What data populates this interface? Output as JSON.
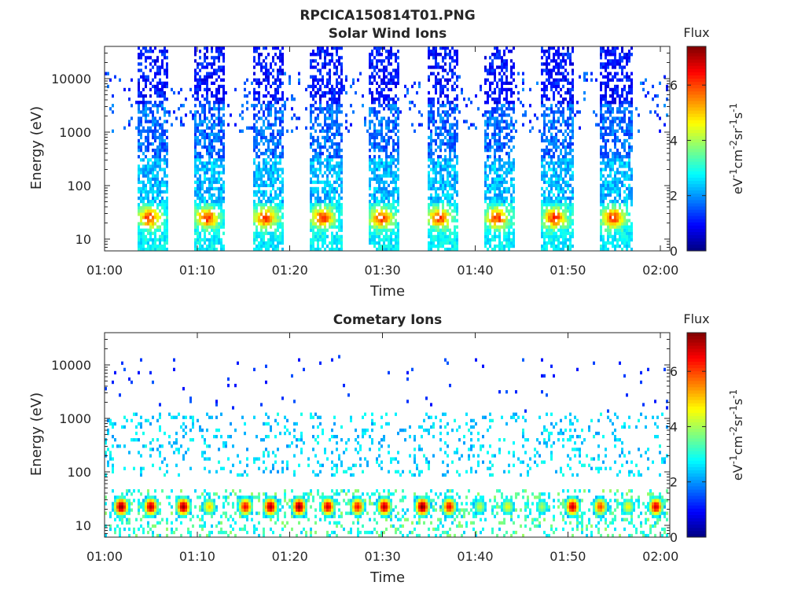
{
  "figure_title": "RPCICA150814T01.PNG",
  "chart_data": [
    {
      "type": "heatmap",
      "title": "Solar Wind Ions",
      "xlabel": "Time",
      "ylabel": "Energy (eV)",
      "x_ticks": [
        "01:00",
        "01:10",
        "01:20",
        "01:30",
        "01:40",
        "01:50",
        "02:00"
      ],
      "x_range_minutes": [
        0,
        61
      ],
      "y_scale": "log",
      "y_ticks": [
        "10",
        "100",
        "1000",
        "10000"
      ],
      "y_range": [
        6,
        40000
      ],
      "colorbar": {
        "title": "Flux",
        "label": "eV-1cm-2sr-1s-1",
        "ticks": [
          "0",
          "2",
          "4",
          "6"
        ],
        "range": [
          0,
          7.4
        ],
        "colormap": "jet"
      },
      "grid": false,
      "pattern": "periodic scans; sparse 2-3 high energy, 4-5 peaks near 25 eV",
      "scan_starts_min": [
        3.5,
        9.7,
        16.0,
        22.2,
        28.5,
        34.8,
        41.0,
        47.2,
        53.5
      ],
      "scan_width_min": 3.4,
      "peak_energy_eV": 25
    },
    {
      "type": "heatmap",
      "title": "Cometary Ions",
      "xlabel": "Time",
      "ylabel": "Energy (eV)",
      "x_ticks": [
        "01:00",
        "01:10",
        "01:20",
        "01:30",
        "01:40",
        "01:50",
        "02:00"
      ],
      "x_range_minutes": [
        0,
        61
      ],
      "y_scale": "log",
      "y_ticks": [
        "10",
        "100",
        "1000",
        "10000"
      ],
      "y_range": [
        6,
        40000
      ],
      "colorbar": {
        "title": "Flux",
        "label": "eV-1cm-2sr-1s-1",
        "ticks": [
          "0",
          "2",
          "4",
          "6"
        ],
        "range": [
          0,
          7.4
        ],
        "colormap": "jet"
      },
      "grid": false,
      "pattern": "intense low-energy bursts 10-40 eV; sparse cyan 100-1000 eV",
      "burst_centers_min": [
        1.8,
        5.0,
        8.5,
        11.3,
        15.2,
        17.9,
        21.0,
        24.1,
        27.3,
        30.2,
        34.3,
        37.2,
        40.5,
        43.5,
        47.2,
        50.5,
        53.5,
        56.5,
        59.5
      ],
      "burst_peak_flux": [
        7.3,
        7.0,
        7.2,
        5.0,
        6.5,
        7.1,
        7.3,
        6.8,
        6.4,
        7.0,
        7.4,
        6.5,
        4.2,
        4.5,
        4.0,
        6.9,
        6.0,
        4.6,
        6.8
      ]
    }
  ]
}
